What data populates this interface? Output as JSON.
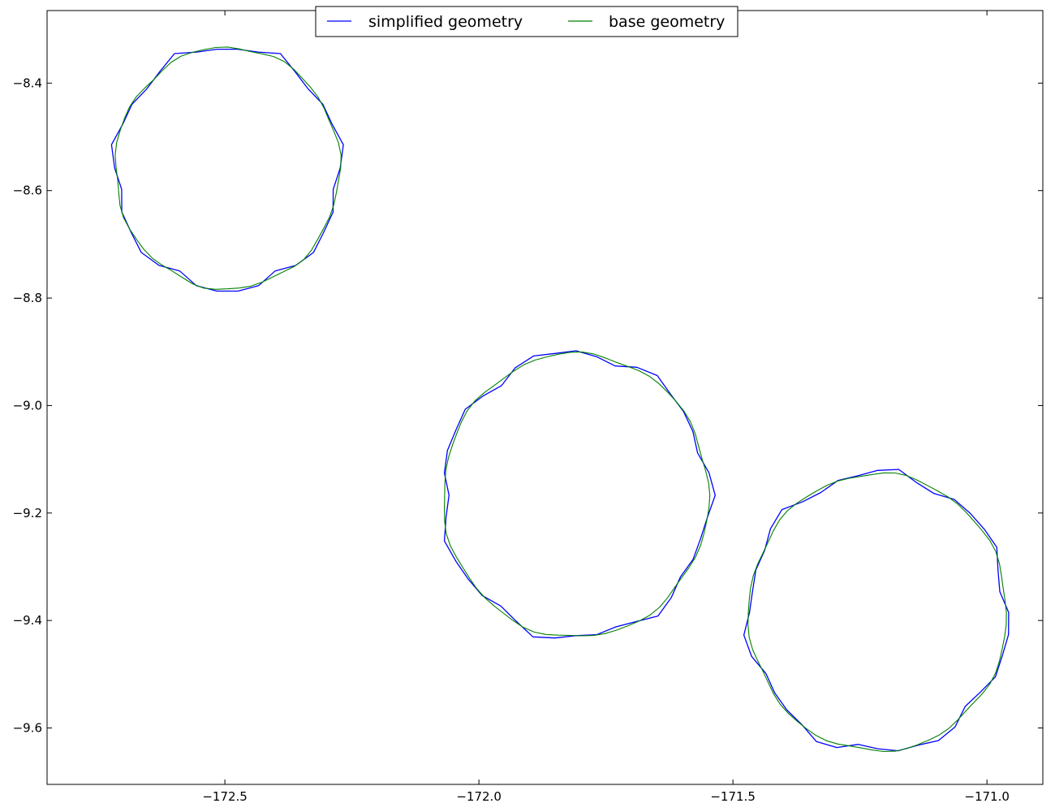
{
  "chart_data": {
    "type": "line",
    "title": "",
    "xlabel": "",
    "ylabel": "",
    "xlim": [
      -172.85,
      -170.89
    ],
    "ylim": [
      -9.705,
      -8.265
    ],
    "x_ticks": [
      -172.5,
      -172.0,
      -171.5,
      -171.0
    ],
    "x_tick_labels": [
      "−172.5",
      "−172.0",
      "−171.5",
      "−171.0"
    ],
    "y_ticks": [
      -8.4,
      -8.6,
      -8.8,
      -9.0,
      -9.2,
      -9.4,
      -9.6
    ],
    "y_tick_labels": [
      "−8.4",
      "−8.6",
      "−8.8",
      "−9.0",
      "−9.2",
      "−9.4",
      "−9.6"
    ],
    "grid": false,
    "legend_position": "top-center",
    "series": [
      {
        "name": "simplified geometry",
        "color": "#0000ff",
        "polygons": [
          {
            "cx": -172.495,
            "cy": -8.558,
            "rx": 0.222,
            "ry": 0.226,
            "jitter": 0.012,
            "n": 34
          },
          {
            "cx": -171.809,
            "cy": -9.167,
            "rx": 0.262,
            "ry": 0.265,
            "jitter": 0.013,
            "n": 40
          },
          {
            "cx": -171.215,
            "cy": -9.385,
            "rx": 0.255,
            "ry": 0.259,
            "jitter": 0.013,
            "n": 40
          }
        ]
      },
      {
        "name": "base geometry",
        "color": "#008000",
        "polygons": [
          {
            "cx": -172.495,
            "cy": -8.558,
            "rx": 0.221,
            "ry": 0.225,
            "jitter": 0.004,
            "n": 60
          },
          {
            "cx": -171.809,
            "cy": -9.167,
            "rx": 0.261,
            "ry": 0.264,
            "jitter": 0.004,
            "n": 70
          },
          {
            "cx": -171.215,
            "cy": -9.385,
            "rx": 0.254,
            "ry": 0.258,
            "jitter": 0.004,
            "n": 70
          }
        ]
      }
    ]
  }
}
